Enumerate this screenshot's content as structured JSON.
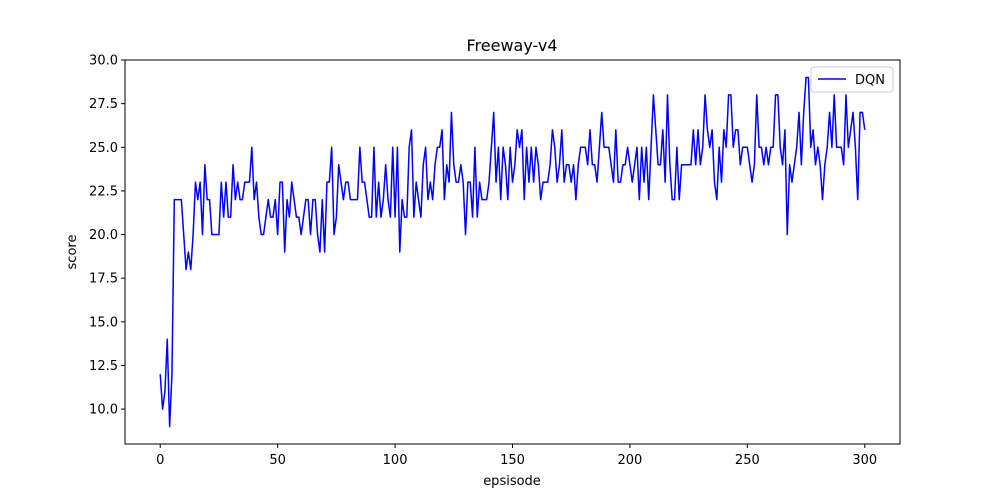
{
  "chart_data": {
    "type": "line",
    "title": "Freeway-v4",
    "xlabel": "epsisode",
    "ylabel": "score",
    "xlim": [
      -15,
      315
    ],
    "ylim": [
      8,
      30
    ],
    "xticks": [
      0,
      50,
      100,
      150,
      200,
      250,
      300
    ],
    "yticks": [
      10.0,
      12.5,
      15.0,
      17.5,
      20.0,
      22.5,
      25.0,
      27.5,
      30.0
    ],
    "xtick_labels": [
      "0",
      "50",
      "100",
      "150",
      "200",
      "250",
      "300"
    ],
    "ytick_labels": [
      "10.0",
      "12.5",
      "15.0",
      "17.5",
      "20.0",
      "22.5",
      "25.0",
      "27.5",
      "30.0"
    ],
    "grid": false,
    "legend_position": "top-right",
    "series": [
      {
        "name": "DQN",
        "color": "#0000ff",
        "x_start": 0,
        "x_step": 1,
        "values": [
          12,
          10,
          11,
          14,
          9,
          12,
          22,
          22,
          22,
          22,
          20,
          18,
          19,
          18,
          20,
          23,
          22,
          23,
          20,
          24,
          22,
          22,
          20,
          20,
          20,
          20,
          23,
          21,
          23,
          21,
          21,
          24,
          22,
          23,
          22,
          22,
          23,
          23,
          23,
          25,
          22,
          23,
          21,
          20,
          20,
          21,
          22,
          21,
          21,
          22,
          20,
          23,
          23,
          19,
          22,
          21,
          23,
          22,
          21,
          21,
          20,
          21,
          22,
          22,
          20,
          22,
          22,
          20,
          19,
          22,
          19,
          23,
          23,
          25,
          20,
          21,
          24,
          23,
          22,
          23,
          23,
          22,
          22,
          22,
          22,
          25,
          23,
          23,
          22,
          21,
          21,
          25,
          21,
          23,
          21,
          22,
          24,
          22,
          21,
          25,
          21,
          25,
          19,
          22,
          21,
          21,
          25,
          26,
          21,
          23,
          22,
          21,
          24,
          25,
          22,
          23,
          22,
          24,
          25,
          25,
          26,
          22,
          24,
          23,
          27,
          24,
          23,
          23,
          24,
          23,
          20,
          23,
          23,
          21,
          25,
          21,
          23,
          22,
          22,
          22,
          23,
          25,
          27,
          23,
          25,
          22,
          25,
          24,
          22,
          25,
          23,
          24,
          26,
          25,
          26,
          22,
          25,
          23,
          25,
          23,
          25,
          24,
          22,
          23,
          23,
          23,
          24,
          26,
          25,
          23,
          24,
          26,
          23,
          24,
          24,
          23,
          24,
          22,
          24,
          25,
          25,
          25,
          24,
          26,
          24,
          24,
          23,
          25,
          27,
          25,
          25,
          25,
          24,
          23,
          26,
          23,
          23,
          24,
          24,
          25,
          24,
          23,
          24,
          25,
          22,
          25,
          23,
          25,
          22,
          25,
          28,
          26,
          24,
          24,
          26,
          23,
          28,
          24,
          22,
          22,
          25,
          22,
          24,
          24,
          24,
          24,
          24,
          26,
          24,
          26,
          24,
          25,
          28,
          26,
          25,
          26,
          23,
          22,
          25,
          23,
          26,
          25,
          28,
          28,
          25,
          26,
          26,
          24,
          25,
          25,
          25,
          24,
          23,
          24,
          28,
          25,
          25,
          24,
          25,
          24,
          25,
          25,
          28,
          28,
          25,
          24,
          26,
          20,
          24,
          23,
          24,
          25,
          27,
          24,
          27,
          29,
          29,
          25,
          26,
          24,
          25,
          24,
          22,
          24,
          25,
          27,
          25,
          28,
          25,
          25,
          25,
          24,
          28,
          25,
          26,
          27,
          25,
          22,
          27,
          27,
          26
        ]
      }
    ]
  }
}
